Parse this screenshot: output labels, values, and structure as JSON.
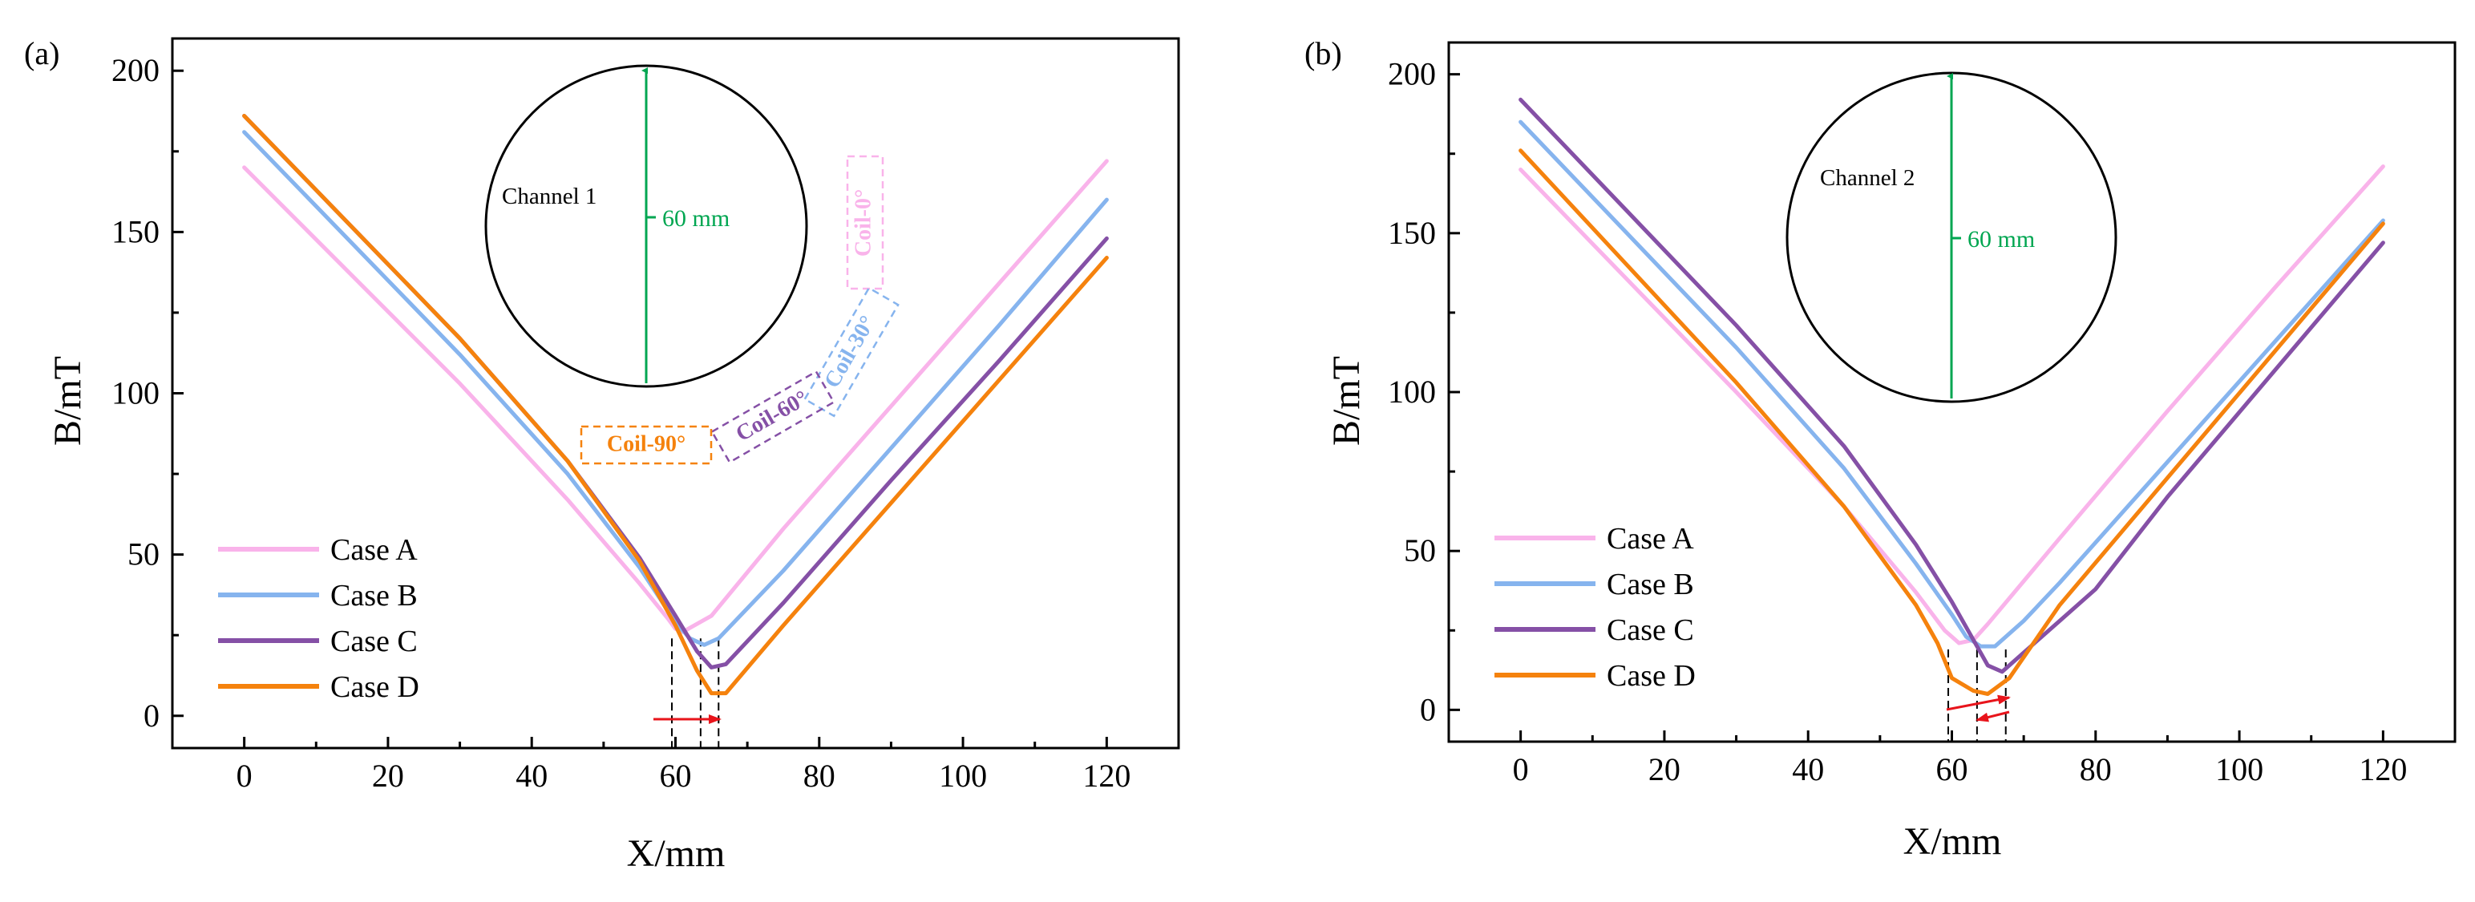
{
  "colors": {
    "case_a": "#f9b3ea",
    "case_b": "#86b4ee",
    "case_c": "#8550a6",
    "case_d": "#f5820d",
    "green": "#00a651",
    "red": "#e8141b"
  },
  "chart_data": [
    {
      "type": "line",
      "panel_label": "(a)",
      "xlabel": "X/mm",
      "ylabel": "B/mT",
      "xlim": [
        -10,
        130
      ],
      "ylim": [
        -10,
        210
      ],
      "xticks": [
        "0",
        "20",
        "40",
        "60",
        "80",
        "100",
        "120"
      ],
      "yticks": [
        "0",
        "50",
        "100",
        "150",
        "200"
      ],
      "legend_position": "bottom-left",
      "series": [
        {
          "name": "Case A",
          "color_key": "case_a",
          "x": [
            0,
            30,
            45,
            55,
            59,
            60,
            61,
            65,
            75,
            90,
            105,
            120
          ],
          "y": [
            170,
            103,
            67,
            41,
            30,
            27,
            26,
            31,
            58,
            96,
            134,
            172
          ]
        },
        {
          "name": "Case B",
          "color_key": "case_b",
          "x": [
            0,
            30,
            45,
            55,
            60,
            62,
            64,
            66,
            75,
            90,
            105,
            120
          ],
          "y": [
            181,
            112,
            75,
            46,
            29,
            24,
            22,
            24,
            45,
            83,
            121,
            160
          ]
        },
        {
          "name": "Case C",
          "color_key": "case_c",
          "x": [
            0,
            30,
            45,
            55,
            60,
            63,
            65,
            67,
            75,
            90,
            105,
            120
          ],
          "y": [
            186,
            117,
            79,
            49,
            31,
            20,
            15,
            16,
            35,
            73,
            110,
            148
          ]
        },
        {
          "name": "Case D",
          "color_key": "case_d",
          "x": [
            0,
            30,
            45,
            55,
            60,
            63,
            65,
            67,
            75,
            90,
            105,
            120
          ],
          "y": [
            186,
            117,
            79,
            48,
            28,
            14,
            7,
            7,
            28,
            66,
            104,
            142
          ]
        }
      ],
      "inset": {
        "channel_label": "Channel 1",
        "diameter_label": "60 mm",
        "coil_labels": [
          "Coil-0°",
          "Coil-30°",
          "Coil-60°",
          "Coil-90°"
        ]
      },
      "minima_guides_x": [
        59.5,
        63.5,
        66
      ]
    },
    {
      "type": "line",
      "panel_label": "(b)",
      "xlabel": "X/mm",
      "ylabel": "B/mT",
      "xlim": [
        -10,
        130
      ],
      "ylim": [
        -10,
        210
      ],
      "xticks": [
        "0",
        "20",
        "40",
        "60",
        "80",
        "100",
        "120"
      ],
      "yticks": [
        "0",
        "50",
        "100",
        "150",
        "200"
      ],
      "legend_position": "bottom-left",
      "series": [
        {
          "name": "Case A",
          "color_key": "case_a",
          "x": [
            0,
            30,
            45,
            55,
            59,
            61,
            63,
            65,
            75,
            90,
            105,
            120
          ],
          "y": [
            170,
            100,
            64,
            37,
            25,
            21,
            22,
            27,
            54,
            94,
            133,
            171
          ]
        },
        {
          "name": "Case B",
          "color_key": "case_b",
          "x": [
            0,
            30,
            45,
            55,
            60,
            62,
            64,
            66,
            70,
            75,
            90,
            105,
            120
          ],
          "y": [
            185,
            114,
            76,
            46,
            30,
            23,
            20,
            20,
            28,
            40,
            78,
            116,
            154
          ]
        },
        {
          "name": "Case C",
          "color_key": "case_c",
          "x": [
            0,
            30,
            45,
            55,
            60,
            63,
            65,
            67,
            70,
            75,
            80,
            90,
            105,
            120
          ],
          "y": [
            192,
            121,
            83,
            52,
            34,
            22,
            14,
            12,
            18,
            28,
            38,
            67,
            107,
            147
          ]
        },
        {
          "name": "Case D",
          "color_key": "case_d",
          "x": [
            0,
            30,
            45,
            55,
            58,
            60,
            63,
            65,
            68,
            75,
            90,
            105,
            120
          ],
          "y": [
            176,
            103,
            64,
            33,
            21,
            10,
            6,
            5,
            10,
            33,
            73,
            113,
            153
          ]
        }
      ],
      "inset": {
        "channel_label": "Channel 2",
        "diameter_label": "60 mm"
      },
      "minima_guides_x": [
        59.5,
        63.5,
        67.5
      ]
    }
  ]
}
